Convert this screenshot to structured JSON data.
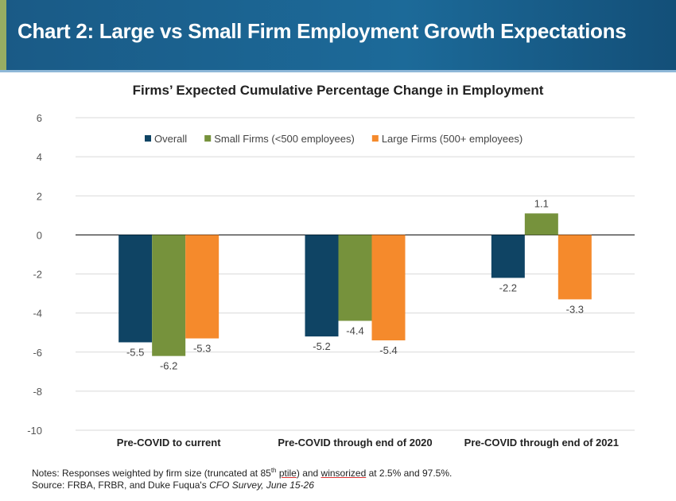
{
  "header": {
    "title": "Chart 2: Large vs Small Firm Employment Growth Expectations"
  },
  "notes": {
    "line1_a": "Notes: Responses weighted by firm size (truncated at 85",
    "line1_sup": "th",
    "line1_b": " ",
    "line1_ptile": "ptile",
    "line1_c": ") and ",
    "line1_wins": "winsorized",
    "line1_d": " at 2.5% and 97.5%.",
    "line2_a": "Source: FRBA, FRBR, and Duke Fuqua's ",
    "line2_italic": "CFO Survey, June 15-26"
  },
  "chart_data": {
    "type": "bar",
    "title": "Firms’ Expected Cumulative Percentage Change in Employment",
    "categories": [
      "Pre-COVID to current",
      "Pre-COVID through end of 2020",
      "Pre-COVID through end of 2021"
    ],
    "series": [
      {
        "name": "Overall",
        "color": "#0f4464",
        "values": [
          -5.5,
          -5.2,
          -2.2
        ]
      },
      {
        "name": "Small Firms (<500 employees)",
        "color": "#76923c",
        "values": [
          -6.2,
          -4.4,
          1.1
        ]
      },
      {
        "name": "Large Firms (500+ employees)",
        "color": "#f58a2c",
        "values": [
          -5.3,
          -5.4,
          -3.3
        ]
      }
    ],
    "ylim": [
      -10,
      6
    ],
    "yticks": [
      -10,
      -8,
      -6,
      -4,
      -2,
      0,
      2,
      4,
      6
    ],
    "grid": true,
    "legend": "top"
  }
}
